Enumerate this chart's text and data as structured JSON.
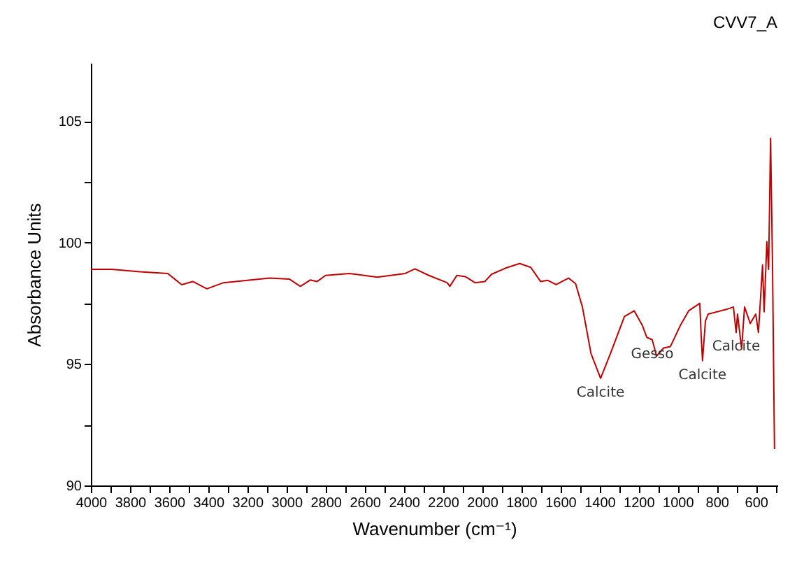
{
  "chart_data": {
    "type": "line",
    "title": "CVV7_A",
    "xlabel": "Wavenumber (cm⁻¹)",
    "ylabel": "Absorbance Units",
    "xlim": [
      4000,
      490
    ],
    "ylim": [
      90,
      107.4
    ],
    "xticks": [
      4000,
      {
        "value": 3900,
        "label": null
      },
      3800,
      {
        "value": 3700,
        "label": null
      },
      3600,
      {
        "value": 3500,
        "label": null
      },
      3400,
      {
        "value": 3300,
        "label": null
      },
      3200,
      {
        "value": 3100,
        "label": null
      },
      3000,
      {
        "value": 2900,
        "label": null
      },
      2800,
      {
        "value": 2700,
        "label": null
      },
      2600,
      {
        "value": 2500,
        "label": null
      },
      2400,
      {
        "value": 2300,
        "label": null
      },
      2200,
      {
        "value": 2100,
        "label": null
      },
      2000,
      {
        "value": 1900,
        "label": null
      },
      1800,
      {
        "value": 1700,
        "label": null
      },
      1600,
      {
        "value": 1500,
        "label": null
      },
      1400,
      {
        "value": 1300,
        "label": null
      },
      1200,
      {
        "value": 1100,
        "label": null
      },
      1000,
      {
        "value": 900,
        "label": null
      },
      800,
      {
        "value": 700,
        "label": null
      },
      600,
      {
        "value": 500,
        "label": null
      }
    ],
    "yticks": [
      90,
      {
        "value": 92.5,
        "label": null
      },
      95,
      {
        "value": 97.5,
        "label": null
      },
      100,
      {
        "value": 102.5,
        "label": null
      },
      105
    ],
    "grid": false,
    "series": [
      {
        "color": "#c00000",
        "x": [
          4000,
          3893,
          3750,
          3607,
          3536,
          3479,
          3407,
          3322,
          3200,
          3086,
          2986,
          2929,
          2879,
          2843,
          2800,
          2679,
          2536,
          2393,
          2343,
          2272,
          2179,
          2165,
          2129,
          2086,
          2036,
          1986,
          1951,
          1880,
          1808,
          1751,
          1701,
          1665,
          1622,
          1558,
          1522,
          1487,
          1443,
          1394,
          1344,
          1272,
          1222,
          1180,
          1158,
          1130,
          1108,
          1072,
          1037,
          987,
          944,
          887,
          880,
          873,
          858,
          844,
          751,
          715,
          701,
          694,
          673,
          658,
          629,
          601,
          587,
          566,
          558,
          544,
          535,
          525,
          515,
          505
        ],
        "values": [
          98.9,
          98.9,
          98.8,
          98.73,
          98.27,
          98.4,
          98.1,
          98.35,
          98.45,
          98.54,
          98.5,
          98.2,
          98.46,
          98.4,
          98.65,
          98.73,
          98.58,
          98.73,
          98.92,
          98.65,
          98.35,
          98.2,
          98.65,
          98.6,
          98.35,
          98.4,
          98.7,
          98.95,
          99.14,
          98.98,
          98.4,
          98.45,
          98.27,
          98.54,
          98.31,
          97.35,
          95.43,
          94.41,
          95.43,
          96.96,
          97.19,
          96.58,
          96.1,
          96.0,
          95.33,
          95.66,
          95.72,
          96.58,
          97.19,
          97.5,
          96.2,
          95.14,
          96.77,
          97.06,
          97.25,
          97.35,
          96.3,
          97.06,
          95.62,
          97.35,
          96.67,
          97.06,
          96.3,
          99.08,
          97.15,
          100.04,
          98.9,
          104.3,
          99.0,
          91.5
        ]
      }
    ],
    "annotations": [
      {
        "text": "Calcite",
        "x": 1394,
        "y": 94.41
      },
      {
        "text": "Gesso",
        "x": 1130,
        "y": 96.0
      },
      {
        "text": "Calcite",
        "x": 873,
        "y": 95.14
      },
      {
        "text": "Calcite",
        "x": 701,
        "y": 96.3
      }
    ]
  }
}
